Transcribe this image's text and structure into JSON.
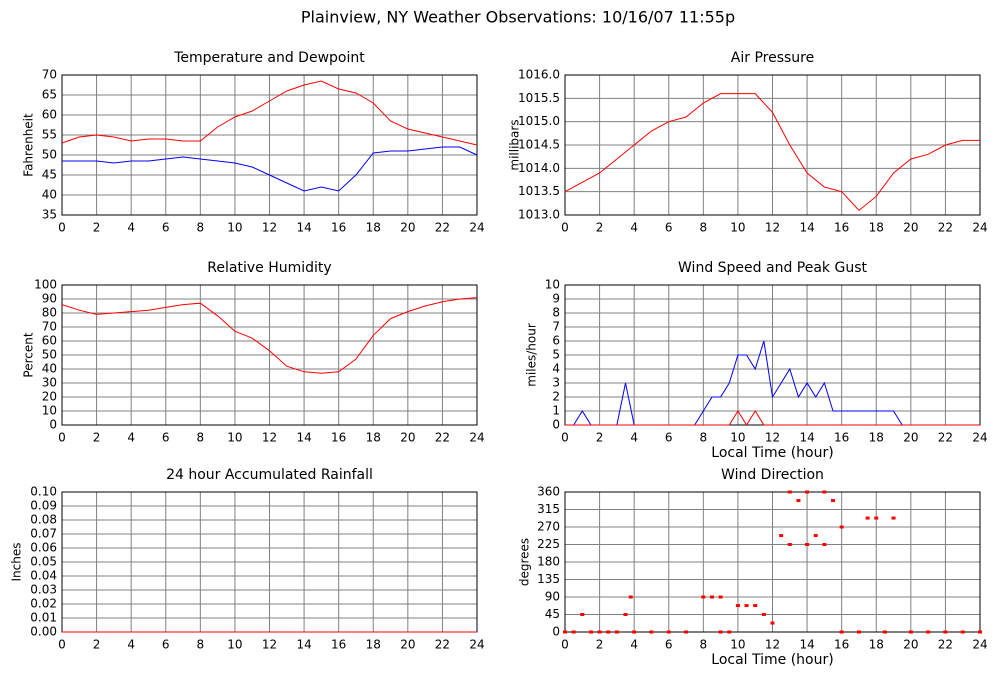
{
  "title": "Plainview, NY Weather Observations: 10/16/07 11:55p",
  "chart_data": [
    {
      "type": "line",
      "title": "Temperature and Dewpoint",
      "ylabel": "Fahrenheit",
      "x": [
        0,
        1,
        2,
        3,
        4,
        5,
        6,
        7,
        8,
        9,
        10,
        11,
        12,
        13,
        14,
        15,
        16,
        17,
        18,
        19,
        20,
        21,
        22,
        23,
        24
      ],
      "series": [
        {
          "name": "Temperature",
          "color": "#ff0000",
          "values": [
            53,
            54.5,
            55,
            54.5,
            53.5,
            54,
            54,
            53.5,
            53.5,
            57,
            59.5,
            61,
            63.5,
            66,
            67.5,
            68.5,
            66.5,
            65.5,
            63,
            58.5,
            56.5,
            55.5,
            54.5,
            53.5,
            52.5
          ]
        },
        {
          "name": "Dewpoint",
          "color": "#0000ff",
          "values": [
            48.5,
            48.5,
            48.5,
            48,
            48.5,
            48.5,
            49,
            49.5,
            49,
            48.5,
            48,
            47,
            45,
            43,
            41,
            42,
            41,
            45,
            50.5,
            51,
            51,
            51.5,
            52,
            52,
            50
          ]
        }
      ],
      "xlim": [
        0,
        24
      ],
      "xticks": [
        0,
        2,
        4,
        6,
        8,
        10,
        12,
        14,
        16,
        18,
        20,
        22,
        24
      ],
      "ylim": [
        35,
        70
      ],
      "yticks": [
        35,
        40,
        45,
        50,
        55,
        60,
        65,
        70
      ],
      "grid": true
    },
    {
      "type": "line",
      "title": "Air Pressure",
      "ylabel": "millibars",
      "x": [
        0,
        1,
        2,
        3,
        4,
        5,
        6,
        7,
        8,
        9,
        10,
        11,
        12,
        13,
        14,
        15,
        16,
        17,
        18,
        19,
        20,
        21,
        22,
        23,
        24
      ],
      "series": [
        {
          "name": "Air Pressure",
          "color": "#ff0000",
          "values": [
            1013.5,
            1013.7,
            1013.9,
            1014.2,
            1014.5,
            1014.8,
            1015.0,
            1015.1,
            1015.4,
            1015.6,
            1015.6,
            1015.6,
            1015.2,
            1014.5,
            1013.9,
            1013.6,
            1013.5,
            1013.1,
            1013.4,
            1013.9,
            1014.2,
            1014.3,
            1014.5,
            1014.6,
            1014.6
          ]
        }
      ],
      "xlim": [
        0,
        24
      ],
      "xticks": [
        0,
        2,
        4,
        6,
        8,
        10,
        12,
        14,
        16,
        18,
        20,
        22,
        24
      ],
      "ylim": [
        1013,
        1016
      ],
      "yticks": [
        {
          "value": 1013,
          "label": "1013.0"
        },
        {
          "value": 1013.5,
          "label": "1013.5"
        },
        {
          "value": 1014,
          "label": "1014.0"
        },
        {
          "value": 1014.5,
          "label": "1014.5"
        },
        {
          "value": 1015,
          "label": "1015.0"
        },
        {
          "value": 1015.5,
          "label": "1015.5"
        },
        {
          "value": 1016,
          "label": "1016.0"
        }
      ],
      "grid": true
    },
    {
      "type": "line",
      "title": "Relative Humidity",
      "ylabel": "Percent",
      "x": [
        0,
        1,
        2,
        3,
        4,
        5,
        6,
        7,
        8,
        9,
        10,
        11,
        12,
        13,
        14,
        15,
        16,
        17,
        18,
        19,
        20,
        21,
        22,
        23,
        24
      ],
      "series": [
        {
          "name": "Relative Humidity",
          "color": "#ff0000",
          "values": [
            86,
            82,
            79,
            80,
            81,
            82,
            84,
            86,
            87,
            78,
            67,
            62,
            53,
            42,
            38,
            37,
            38,
            47,
            64,
            76,
            81,
            85,
            88,
            90,
            91
          ]
        }
      ],
      "xlim": [
        0,
        24
      ],
      "xticks": [
        0,
        2,
        4,
        6,
        8,
        10,
        12,
        14,
        16,
        18,
        20,
        22,
        24
      ],
      "ylim": [
        0,
        100
      ],
      "yticks": [
        0,
        10,
        20,
        30,
        40,
        50,
        60,
        70,
        80,
        90,
        100
      ],
      "grid": true
    },
    {
      "type": "line",
      "title": "Wind Speed and Peak Gust",
      "ylabel": "miles/hour",
      "xlabel": "Local Time (hour)",
      "x": [
        0,
        0.5,
        1,
        1.5,
        2,
        2.5,
        3,
        3.5,
        4,
        4.5,
        5,
        5.5,
        6,
        6.5,
        7,
        7.5,
        8,
        8.5,
        9,
        9.5,
        10,
        10.5,
        11,
        11.5,
        12,
        12.5,
        13,
        13.5,
        14,
        14.5,
        15,
        15.5,
        16,
        16.5,
        17,
        17.5,
        18,
        18.5,
        19,
        19.5,
        20,
        20.5,
        21,
        21.5,
        22,
        22.5,
        23,
        23.5,
        24
      ],
      "series": [
        {
          "name": "Wind Speed",
          "color": "#0000ff",
          "values": [
            0,
            0,
            1,
            0,
            0,
            0,
            0,
            3,
            0,
            0,
            0,
            0,
            0,
            0,
            0,
            0,
            1,
            2,
            2,
            3,
            5,
            5,
            4,
            6,
            2,
            3,
            4,
            2,
            3,
            2,
            3,
            1,
            1,
            1,
            1,
            1,
            1,
            1,
            1,
            0,
            0,
            0,
            0,
            0,
            0,
            0,
            0,
            0,
            0
          ]
        },
        {
          "name": "Peak Gust",
          "color": "#ff0000",
          "values": [
            0,
            0,
            0,
            0,
            0,
            0,
            0,
            0,
            0,
            0,
            0,
            0,
            0,
            0,
            0,
            0,
            0,
            0,
            0,
            0,
            1,
            0,
            1,
            0,
            0,
            0,
            0,
            0,
            0,
            0,
            0,
            0,
            0,
            0,
            0,
            0,
            0,
            0,
            0,
            0,
            0,
            0,
            0,
            0,
            0,
            0,
            0,
            0,
            0
          ]
        }
      ],
      "xlim": [
        0,
        24
      ],
      "xticks": [
        0,
        2,
        4,
        6,
        8,
        10,
        12,
        14,
        16,
        18,
        20,
        22,
        24
      ],
      "ylim": [
        0,
        10
      ],
      "yticks": [
        0,
        1,
        2,
        3,
        4,
        5,
        6,
        7,
        8,
        9,
        10
      ],
      "grid": true
    },
    {
      "type": "line",
      "title": "24 hour Accumulated Rainfall",
      "ylabel": "Inches",
      "x": [
        0,
        24
      ],
      "series": [
        {
          "name": "Rainfall",
          "color": "#ff0000",
          "values": [
            0,
            0
          ]
        }
      ],
      "xlim": [
        0,
        24
      ],
      "xticks": [
        0,
        2,
        4,
        6,
        8,
        10,
        12,
        14,
        16,
        18,
        20,
        22,
        24
      ],
      "ylim": [
        0,
        0.1
      ],
      "yticks": [
        {
          "value": 0,
          "label": "0.00"
        },
        {
          "value": 0.01,
          "label": "0.01"
        },
        {
          "value": 0.02,
          "label": "0.02"
        },
        {
          "value": 0.03,
          "label": "0.03"
        },
        {
          "value": 0.04,
          "label": "0.04"
        },
        {
          "value": 0.05,
          "label": "0.05"
        },
        {
          "value": 0.06,
          "label": "0.06"
        },
        {
          "value": 0.07,
          "label": "0.07"
        },
        {
          "value": 0.08,
          "label": "0.08"
        },
        {
          "value": 0.09,
          "label": "0.09"
        },
        {
          "value": 0.1,
          "label": "0.10"
        }
      ],
      "grid": true
    },
    {
      "type": "scatter",
      "title": "Wind Direction",
      "ylabel": "degrees",
      "xlabel": "Local Time (hour)",
      "x": [
        0,
        0.5,
        1,
        1.5,
        2,
        2.5,
        3,
        3.5,
        3.8,
        4,
        5,
        6,
        7,
        8,
        8.5,
        9,
        9,
        9.5,
        10,
        10.5,
        11,
        11.5,
        12,
        12.5,
        13,
        13,
        13.5,
        14,
        14,
        14.5,
        15,
        15,
        15.5,
        16,
        16,
        17,
        17.5,
        18,
        18.5,
        19,
        20,
        21,
        22,
        23,
        24
      ],
      "series": [
        {
          "name": "Wind Direction",
          "color": "#ff0000",
          "values": [
            0,
            0,
            45,
            0,
            0,
            0,
            0,
            45,
            90,
            0,
            0,
            0,
            0,
            90,
            90,
            90,
            0,
            0,
            68,
            68,
            68,
            45,
            23,
            248,
            225,
            360,
            338,
            360,
            225,
            248,
            360,
            225,
            338,
            270,
            0,
            0,
            293,
            293,
            0,
            293,
            0,
            0,
            0,
            0,
            0
          ]
        }
      ],
      "xlim": [
        0,
        24
      ],
      "xticks": [
        0,
        2,
        4,
        6,
        8,
        10,
        12,
        14,
        16,
        18,
        20,
        22,
        24
      ],
      "ylim": [
        0,
        360
      ],
      "yticks": [
        0,
        45,
        90,
        135,
        180,
        225,
        270,
        315,
        360
      ],
      "grid": true
    }
  ]
}
